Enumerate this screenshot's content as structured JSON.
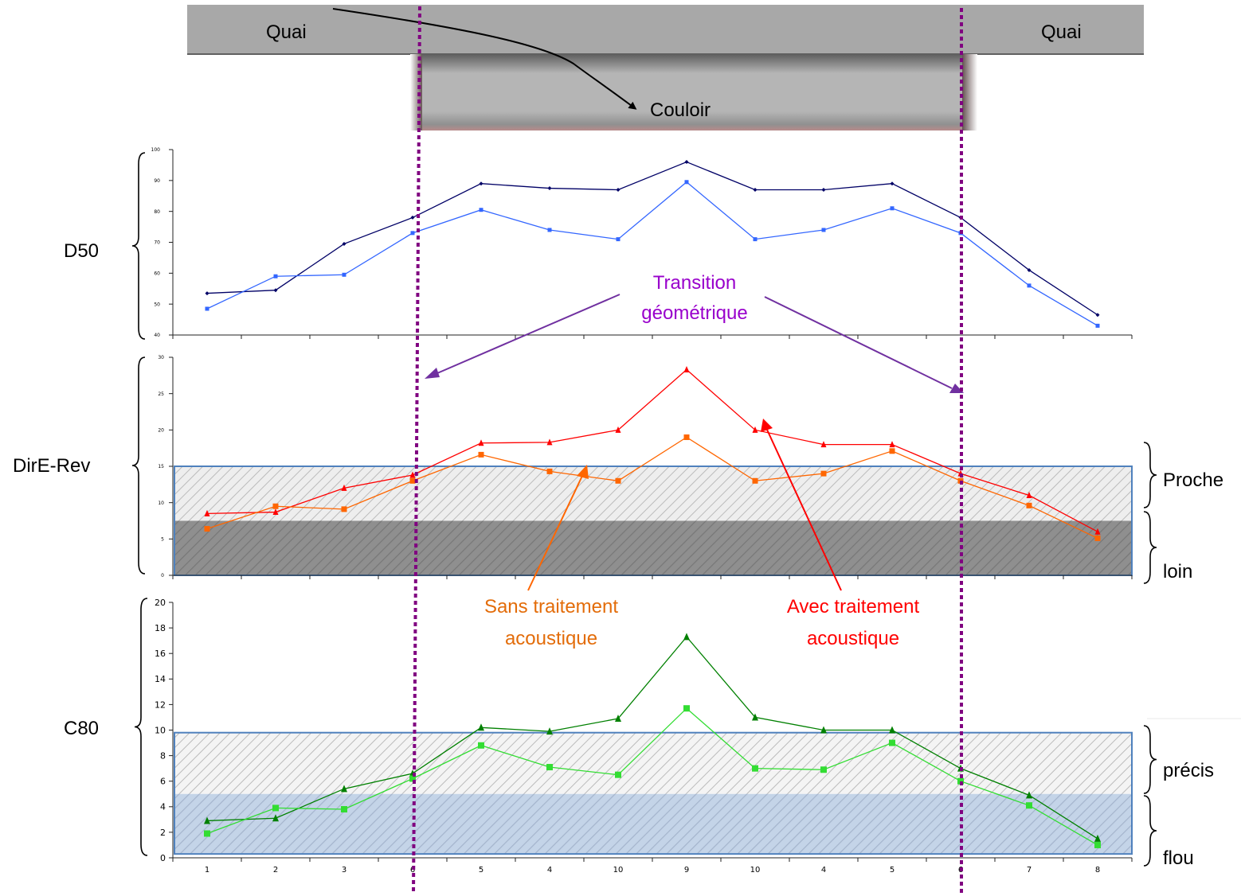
{
  "diagram": {
    "quai_left": "Quai",
    "quai_right": "Quai",
    "couloir": "Couloir"
  },
  "annotations": {
    "transition": [
      "Transition",
      "géométrique"
    ],
    "sans": [
      "Sans traitement",
      "acoustique"
    ],
    "avec": [
      "Avec traitement",
      "acoustique"
    ]
  },
  "colors": {
    "transition": "#7030a0",
    "vline": "#800080",
    "sans": "#e36c09",
    "avec": "#ff0000"
  },
  "chart_data": [
    {
      "type": "line",
      "label": "D50",
      "categories": [
        "1",
        "2",
        "3",
        "6",
        "5",
        "4",
        "10",
        "9",
        "10",
        "4",
        "5",
        "6",
        "7",
        "8"
      ],
      "ylim": [
        40,
        100
      ],
      "yticks": [
        40,
        50,
        60,
        70,
        80,
        90,
        100
      ],
      "series": [
        {
          "key": "avec",
          "color": "#000066",
          "marker": "diamond",
          "values": [
            53.5,
            54.5,
            69.5,
            78,
            89,
            87.5,
            87,
            96,
            87,
            87,
            89,
            78,
            61,
            46.5
          ]
        },
        {
          "key": "sans",
          "color": "#3366ff",
          "marker": "square",
          "values": [
            48.5,
            59,
            59.5,
            73,
            80.5,
            74,
            71,
            89.5,
            71,
            74,
            81,
            73,
            56,
            43
          ]
        }
      ]
    },
    {
      "type": "line",
      "label": "DirE-Rev",
      "categories": [
        "1",
        "2",
        "3",
        "6",
        "5",
        "4",
        "10",
        "9",
        "10",
        "4",
        "5",
        "6",
        "7",
        "8"
      ],
      "ylim": [
        0,
        30
      ],
      "yticks": [
        0,
        5,
        10,
        15,
        20,
        25,
        30
      ],
      "bands": [
        {
          "label": "Proche",
          "from": 7.5,
          "to": 15
        },
        {
          "label": "loin",
          "from": 0,
          "to": 7.5
        }
      ],
      "series": [
        {
          "key": "avec",
          "color": "#ff0000",
          "marker": "triangle",
          "values": [
            8.5,
            8.7,
            12,
            13.8,
            18.2,
            18.3,
            20,
            28.3,
            20,
            18,
            18,
            14,
            11,
            6
          ]
        },
        {
          "key": "sans",
          "color": "#ff6600",
          "marker": "square",
          "values": [
            6.4,
            9.5,
            9.1,
            13,
            16.6,
            14.3,
            13,
            19,
            13,
            14,
            17.1,
            13,
            9.6,
            5.1
          ]
        }
      ]
    },
    {
      "type": "line",
      "label": "C80",
      "categories": [
        "1",
        "2",
        "3",
        "6",
        "5",
        "4",
        "10",
        "9",
        "10",
        "4",
        "5",
        "6",
        "7",
        "8"
      ],
      "ylim": [
        0,
        20
      ],
      "yticks": [
        0,
        2,
        4,
        6,
        8,
        10,
        12,
        14,
        16,
        18,
        20
      ],
      "bands": [
        {
          "label": "précis",
          "from": 5,
          "to": 9.8
        },
        {
          "label": "flou",
          "from": 0.3,
          "to": 5
        }
      ],
      "series": [
        {
          "key": "avec",
          "color": "#008000",
          "marker": "triangle",
          "values": [
            2.9,
            3.1,
            5.4,
            6.6,
            10.2,
            9.9,
            10.9,
            17.3,
            11,
            10,
            10,
            7,
            4.9,
            1.5
          ]
        },
        {
          "key": "sans",
          "color": "#33dd33",
          "marker": "square",
          "values": [
            1.9,
            3.9,
            3.8,
            6.2,
            8.8,
            7.1,
            6.5,
            11.7,
            7,
            6.9,
            9,
            6,
            4.1,
            1
          ]
        }
      ]
    }
  ]
}
